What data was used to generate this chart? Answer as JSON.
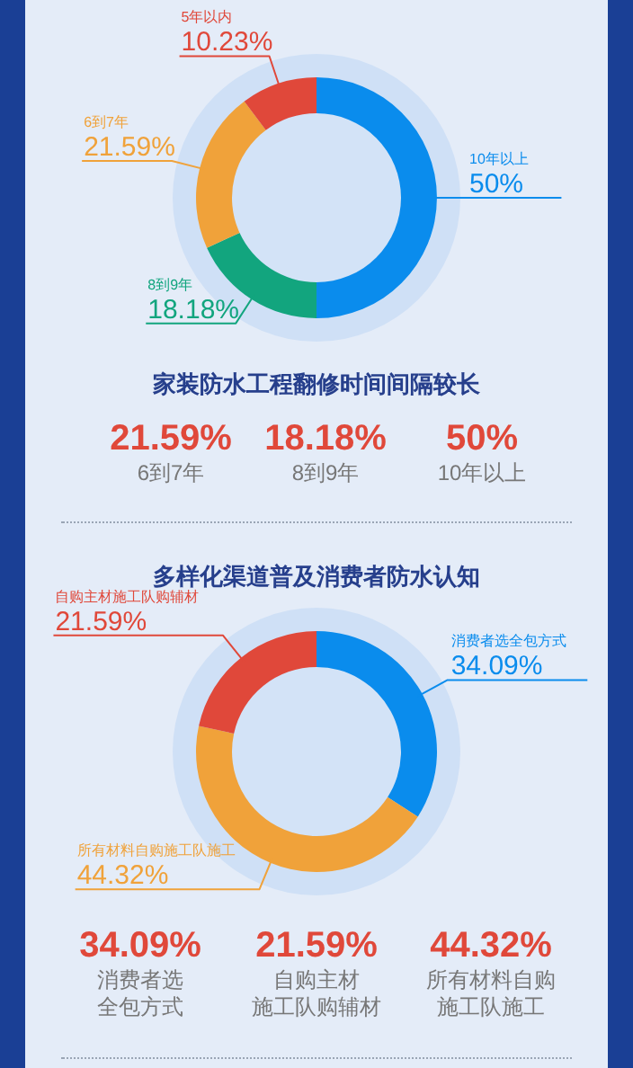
{
  "chart_data": [
    {
      "type": "donut",
      "title": "家装防水工程翻修时间间隔较长",
      "categories": [
        "10年以上",
        "8到9年",
        "6到7年",
        "5年以内"
      ],
      "values": [
        50,
        18.18,
        21.59,
        10.23
      ],
      "colors": [
        "#0a8ced",
        "#12a57e",
        "#f0a23a",
        "#e0483a"
      ],
      "value_labels": [
        "50%",
        "18.18%",
        "21.59%",
        "10.23%"
      ],
      "annotations": [
        "21.59%",
        "6到7年",
        "18.18%",
        "8到9年",
        "50%",
        "10年以上"
      ]
    },
    {
      "type": "donut",
      "title": "多样化渠道普及消费者防水认知",
      "categories": [
        "消费者选全包方式",
        "所有材料自购施工队施工",
        "自购主材施工队购辅材"
      ],
      "values": [
        34.09,
        44.32,
        21.59
      ],
      "colors": [
        "#0a8ced",
        "#f0a23a",
        "#e0483a"
      ],
      "value_labels": [
        "34.09%",
        "44.32%",
        "21.59%"
      ],
      "annotations": [
        "34.09%",
        "消费者选",
        "全包方式",
        "21.59%",
        "自购主材",
        "施工队购辅材",
        "44.32%",
        "所有材料自购",
        "施工队施工"
      ]
    }
  ]
}
